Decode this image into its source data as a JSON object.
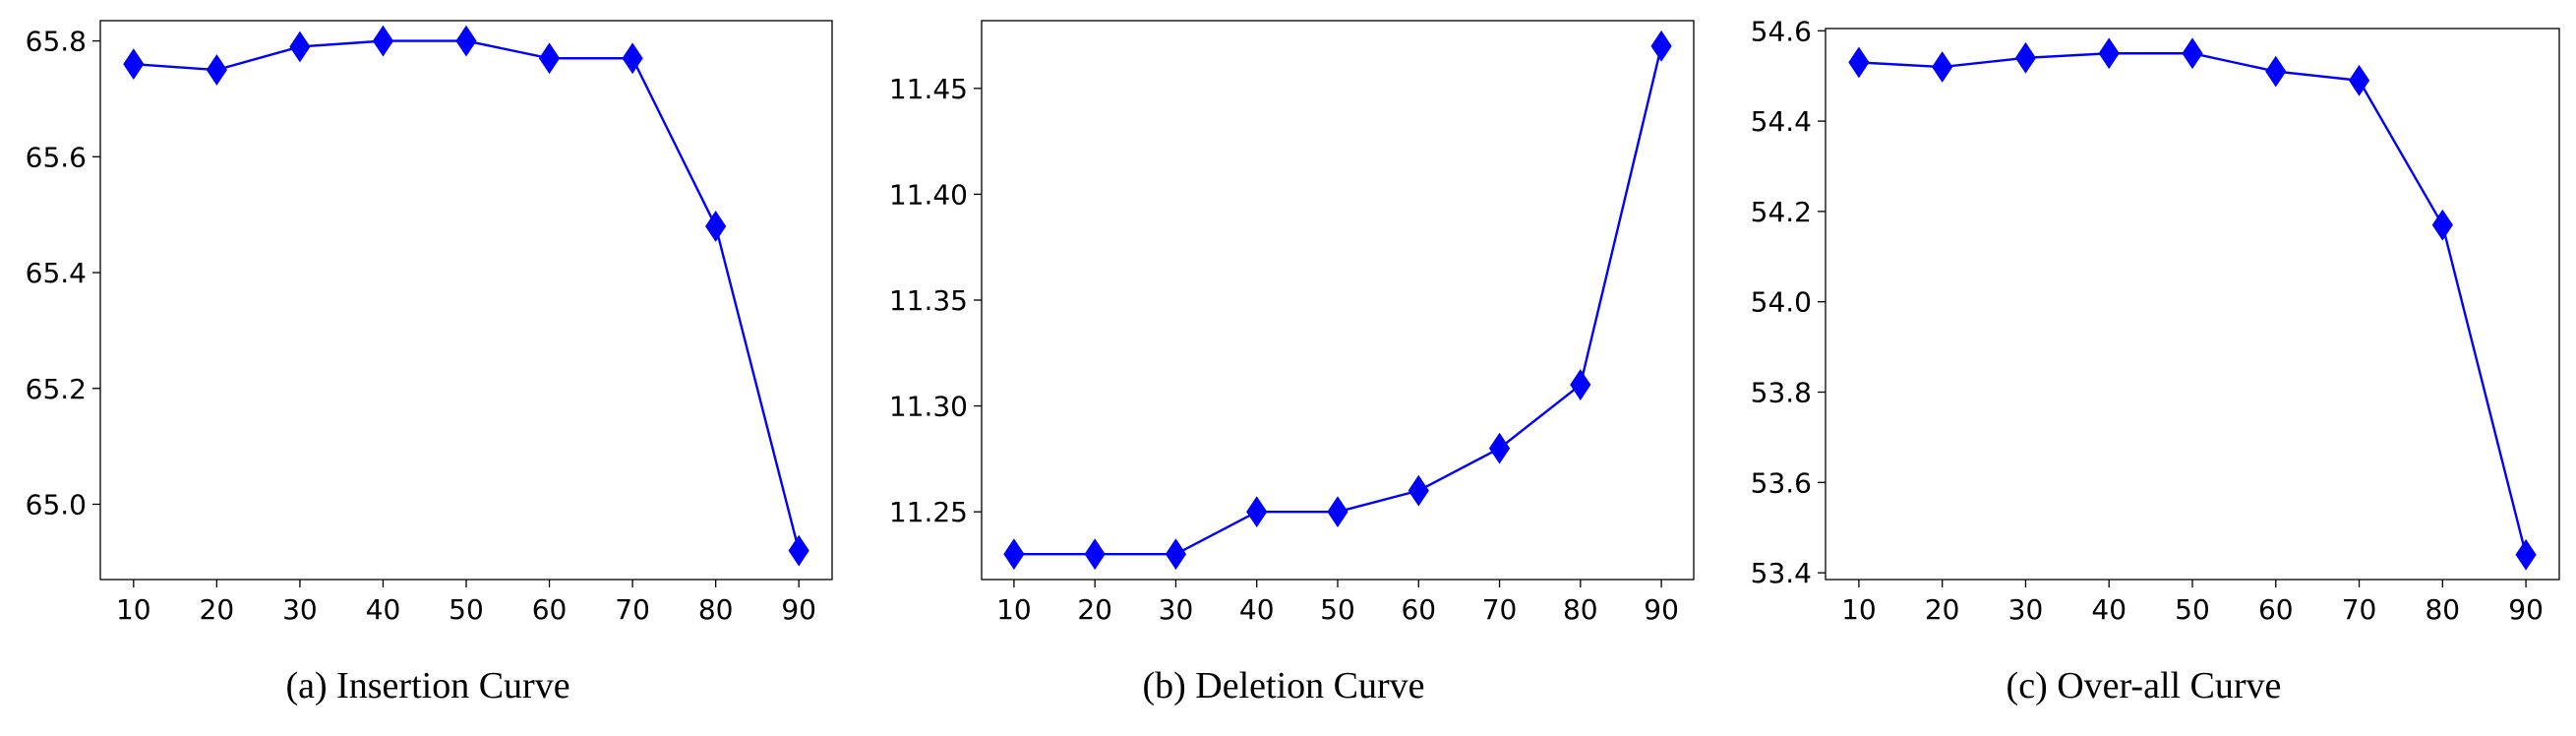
{
  "chart_data": [
    {
      "type": "line",
      "caption": "(a) Insertion Curve",
      "x": [
        10,
        20,
        30,
        40,
        50,
        60,
        70,
        80,
        90
      ],
      "series": [
        {
          "values": [
            65.76,
            65.75,
            65.79,
            65.8,
            65.8,
            65.77,
            65.77,
            65.48,
            64.92
          ]
        }
      ],
      "xticks": [
        "10",
        "20",
        "30",
        "40",
        "50",
        "60",
        "70",
        "80",
        "90"
      ],
      "yticks": [
        "65.0",
        "65.2",
        "65.4",
        "65.6",
        "65.8"
      ],
      "xlim": [
        6,
        94
      ],
      "ylim": [
        64.87,
        65.835
      ],
      "marker": "diamond",
      "color": "#0000ff",
      "grid": false
    },
    {
      "type": "line",
      "caption": "(b) Deletion Curve",
      "x": [
        10,
        20,
        30,
        40,
        50,
        60,
        70,
        80,
        90
      ],
      "series": [
        {
          "values": [
            11.23,
            11.23,
            11.23,
            11.25,
            11.25,
            11.26,
            11.28,
            11.31,
            11.47
          ]
        }
      ],
      "xticks": [
        "10",
        "20",
        "30",
        "40",
        "50",
        "60",
        "70",
        "80",
        "90"
      ],
      "yticks": [
        "11.25",
        "11.30",
        "11.35",
        "11.40",
        "11.45"
      ],
      "xlim": [
        6,
        94
      ],
      "ylim": [
        11.218,
        11.482
      ],
      "marker": "diamond",
      "color": "#0000ff",
      "grid": false
    },
    {
      "type": "line",
      "caption": "(c) Over-all Curve",
      "x": [
        10,
        20,
        30,
        40,
        50,
        60,
        70,
        80,
        90
      ],
      "series": [
        {
          "values": [
            54.53,
            54.52,
            54.54,
            54.55,
            54.55,
            54.51,
            54.49,
            54.17,
            53.44
          ]
        }
      ],
      "xticks": [
        "10",
        "20",
        "30",
        "40",
        "50",
        "60",
        "70",
        "80",
        "90"
      ],
      "yticks": [
        "53.4",
        "53.6",
        "53.8",
        "54.0",
        "54.2",
        "54.4",
        "54.6"
      ],
      "xlim": [
        6,
        94
      ],
      "ylim": [
        53.385,
        54.605
      ],
      "marker": "diamond",
      "color": "#0000ff",
      "grid": false
    }
  ]
}
